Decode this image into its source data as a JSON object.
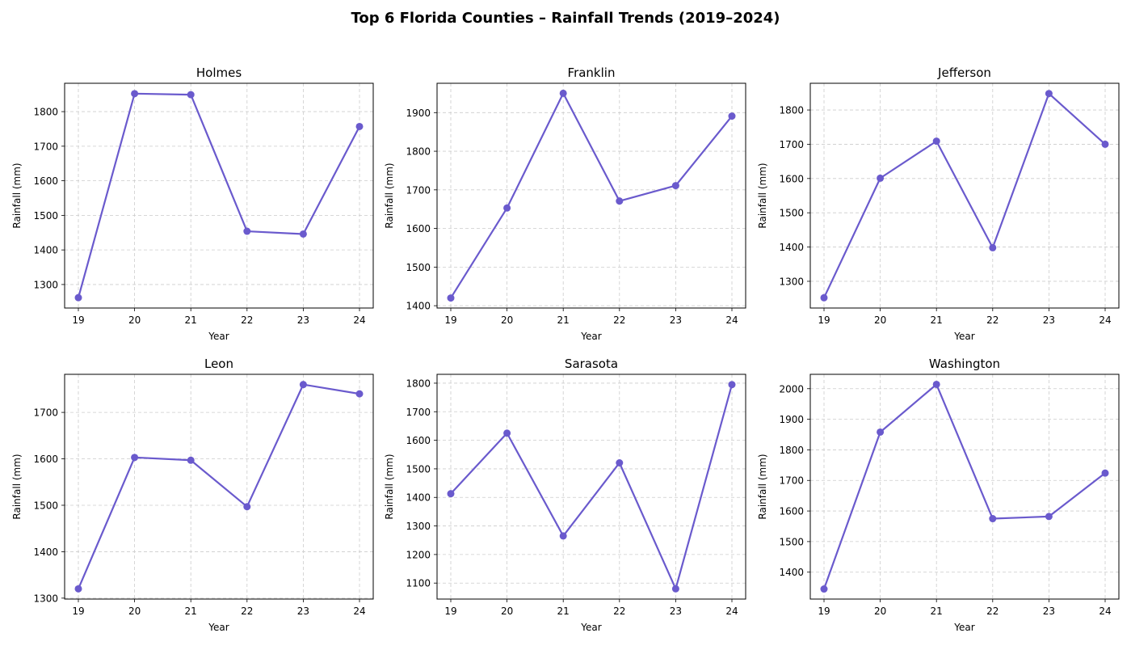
{
  "figure": {
    "title": "Top 6 Florida Counties – Rainfall Trends (2019–2024)"
  },
  "chart_data": [
    {
      "type": "line",
      "title": "Holmes",
      "xlabel": "Year",
      "ylabel": "Rainfall (mm)",
      "categories": [
        "19",
        "20",
        "21",
        "22",
        "23",
        "24"
      ],
      "values": [
        1262,
        1852,
        1849,
        1454,
        1446,
        1757
      ],
      "ylim": [
        1232,
        1882
      ],
      "yticks": [
        1300,
        1400,
        1500,
        1600,
        1700,
        1800
      ],
      "grid": true,
      "color": "#6a5acd"
    },
    {
      "type": "line",
      "title": "Franklin",
      "xlabel": "Year",
      "ylabel": "Rainfall (mm)",
      "categories": [
        "19",
        "20",
        "21",
        "22",
        "23",
        "24"
      ],
      "values": [
        1420,
        1653,
        1950,
        1671,
        1711,
        1891
      ],
      "ylim": [
        1394,
        1976
      ],
      "yticks": [
        1400,
        1500,
        1600,
        1700,
        1800,
        1900
      ],
      "grid": true,
      "color": "#6a5acd"
    },
    {
      "type": "line",
      "title": "Jefferson",
      "xlabel": "Year",
      "ylabel": "Rainfall (mm)",
      "categories": [
        "19",
        "20",
        "21",
        "22",
        "23",
        "24"
      ],
      "values": [
        1252,
        1601,
        1709,
        1398,
        1848,
        1700
      ],
      "ylim": [
        1222,
        1878
      ],
      "yticks": [
        1300,
        1400,
        1500,
        1600,
        1700,
        1800
      ],
      "grid": true,
      "color": "#6a5acd"
    },
    {
      "type": "line",
      "title": "Leon",
      "xlabel": "Year",
      "ylabel": "Rainfall (mm)",
      "categories": [
        "19",
        "20",
        "21",
        "22",
        "23",
        "24"
      ],
      "values": [
        1320,
        1603,
        1597,
        1497,
        1760,
        1740
      ],
      "ylim": [
        1298,
        1782
      ],
      "yticks": [
        1300,
        1400,
        1500,
        1600,
        1700
      ],
      "grid": true,
      "color": "#6a5acd"
    },
    {
      "type": "line",
      "title": "Sarasota",
      "xlabel": "Year",
      "ylabel": "Rainfall (mm)",
      "categories": [
        "19",
        "20",
        "21",
        "22",
        "23",
        "24"
      ],
      "values": [
        1413,
        1625,
        1265,
        1521,
        1080,
        1795
      ],
      "ylim": [
        1044,
        1831
      ],
      "yticks": [
        1100,
        1200,
        1300,
        1400,
        1500,
        1600,
        1700,
        1800
      ],
      "grid": true,
      "color": "#6a5acd"
    },
    {
      "type": "line",
      "title": "Washington",
      "xlabel": "Year",
      "ylabel": "Rainfall (mm)",
      "categories": [
        "19",
        "20",
        "21",
        "22",
        "23",
        "24"
      ],
      "values": [
        1345,
        1858,
        2014,
        1575,
        1582,
        1724
      ],
      "ylim": [
        1312,
        2047
      ],
      "yticks": [
        1400,
        1500,
        1600,
        1700,
        1800,
        1900,
        2000
      ],
      "grid": true,
      "color": "#6a5acd"
    }
  ]
}
